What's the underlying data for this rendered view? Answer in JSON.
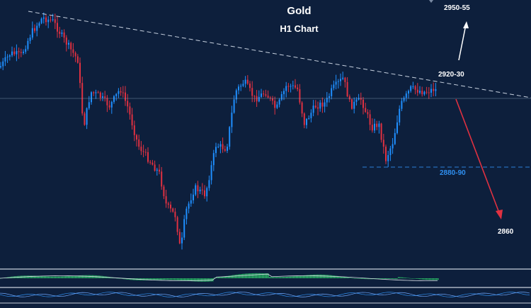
{
  "chart_data": {
    "type": "candlestick",
    "title": "Gold",
    "subtitle": "H1 Chart",
    "colors": {
      "background": "#0d1f3c",
      "bull": "#1f8fff",
      "bear": "#e03141",
      "trendline": "#c8d2e0",
      "support": "#2b7fd9",
      "level_label": "#ffffff",
      "support_label": "#2f8ff0",
      "histogram": "#2ec26b"
    },
    "levels": [
      {
        "label": "2950-55"
      },
      {
        "label": "2920-30"
      },
      {
        "label": "2880-90"
      },
      {
        "label": "2860"
      }
    ],
    "scenarios": [
      {
        "direction": "up",
        "color": "#ffffff"
      },
      {
        "direction": "down",
        "color": "#e03141"
      }
    ],
    "grid": false
  }
}
